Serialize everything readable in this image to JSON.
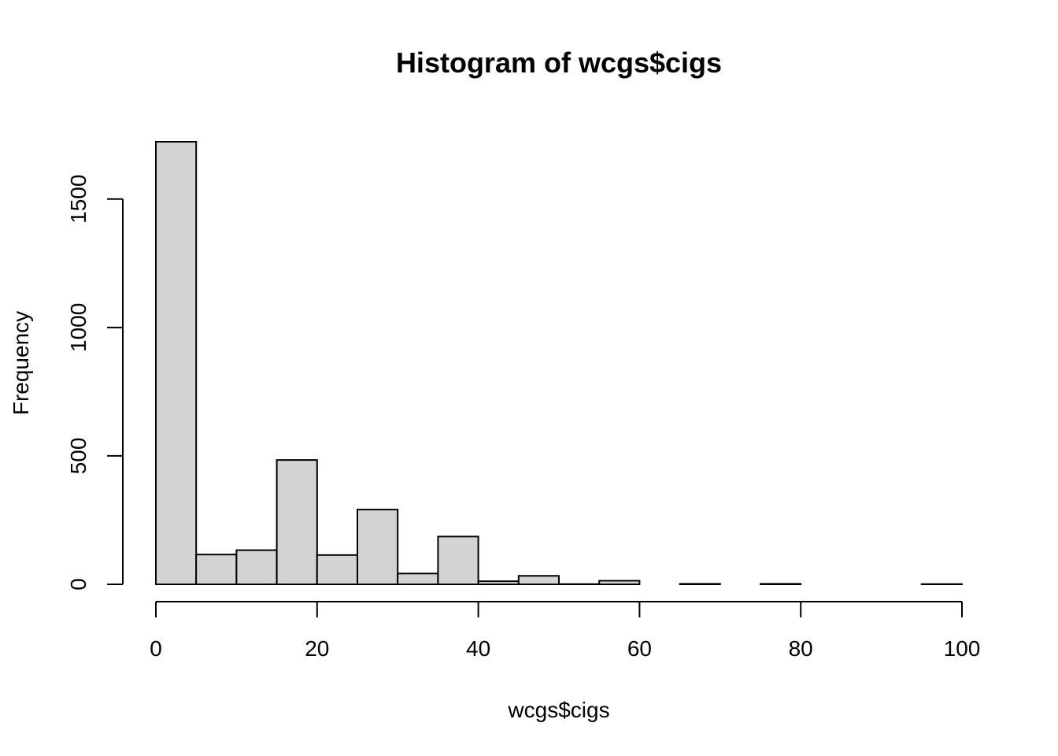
{
  "chart_data": {
    "type": "bar",
    "title": "Histogram of wcgs$cigs",
    "xlabel": "wcgs$cigs",
    "ylabel": "Frequency",
    "bar_color": "#d3d3d3",
    "border_color": "#000000",
    "bin_width": 5,
    "bin_starts": [
      0,
      5,
      10,
      15,
      20,
      25,
      30,
      35,
      40,
      45,
      50,
      55,
      60,
      65,
      70,
      75,
      80,
      85,
      90,
      95
    ],
    "values": [
      1723,
      116,
      133,
      484,
      114,
      291,
      42,
      186,
      12,
      33,
      1,
      14,
      0,
      2,
      0,
      2,
      0,
      0,
      0,
      1
    ],
    "xlim": [
      0,
      100
    ],
    "ylim": [
      0,
      1723
    ],
    "x_ticks": [
      0,
      20,
      40,
      60,
      80,
      100
    ],
    "x_tick_labels": [
      "0",
      "20",
      "40",
      "60",
      "80",
      "100"
    ],
    "y_ticks": [
      0,
      500,
      1000,
      1500
    ],
    "y_tick_labels": [
      "0",
      "500",
      "1000",
      "1500"
    ],
    "grid": false,
    "legend": "none"
  }
}
